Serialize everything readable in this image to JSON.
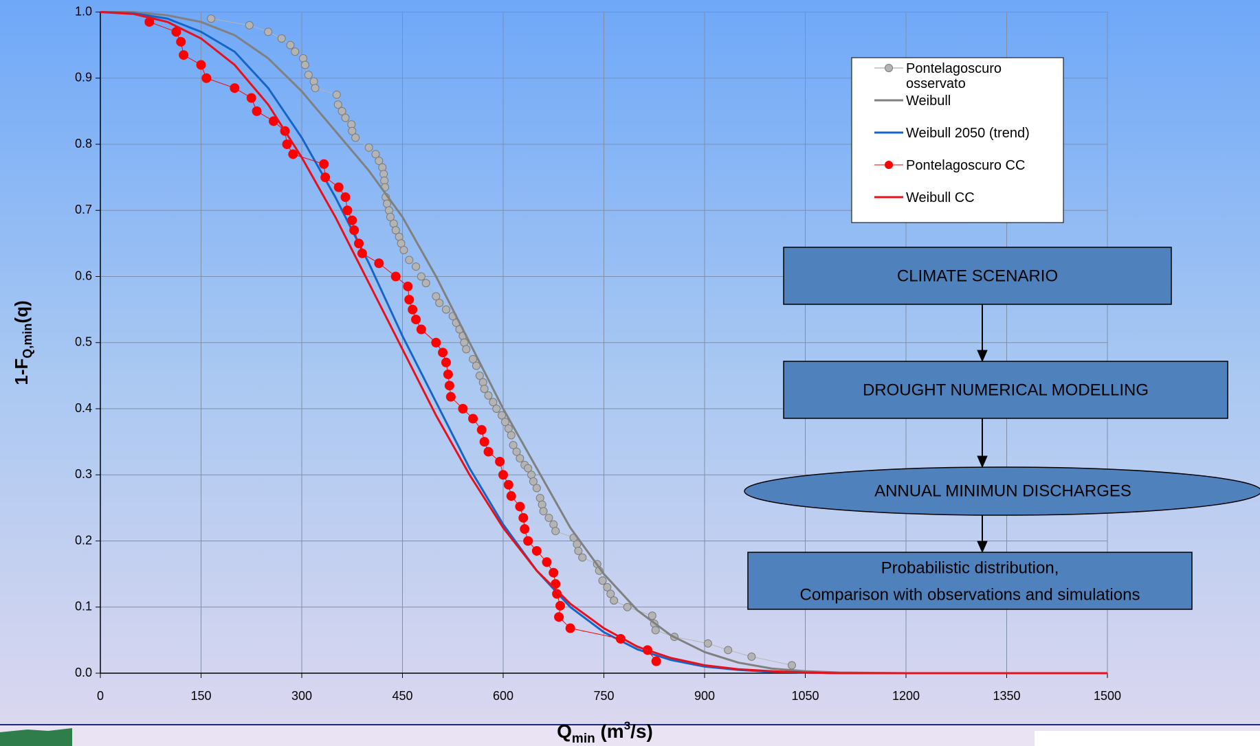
{
  "chart_data": {
    "type": "line",
    "x_label": [
      "Q",
      "min",
      " (m",
      "3",
      "/s)"
    ],
    "y_label": [
      "1-F",
      "Q,min",
      "(q)"
    ],
    "xlim": [
      0,
      1500
    ],
    "xticks": [
      0,
      150,
      300,
      450,
      600,
      750,
      900,
      1050,
      1200,
      1350,
      1500
    ],
    "ylim": [
      0,
      1
    ],
    "yticks": [
      {
        "value": 0,
        "label": "0.0"
      },
      0.1,
      0.2,
      0.3,
      0.4,
      0.5,
      0.6,
      0.7,
      0.8,
      0.9,
      {
        "value": 1,
        "label": "1.0"
      }
    ],
    "grid": true,
    "series": [
      {
        "name": "Pontelagoscuro osservato",
        "color": "#b4b4b4",
        "marker": true,
        "line_width": 1,
        "x": [
          165,
          222,
          250,
          270,
          283,
          290,
          302,
          305,
          310,
          318,
          320,
          352,
          354,
          360,
          365,
          374,
          375,
          380,
          400,
          410,
          415,
          420,
          422,
          423,
          424,
          425,
          427,
          430,
          432,
          437,
          440,
          445,
          448,
          452,
          460,
          470,
          478,
          485,
          500,
          505,
          515,
          525,
          530,
          535,
          540,
          542,
          545,
          555,
          560,
          565,
          570,
          572,
          578,
          585,
          590,
          598,
          603,
          608,
          612,
          615,
          620,
          625,
          632,
          637,
          642,
          645,
          650,
          655,
          658,
          660,
          668,
          675,
          678,
          705,
          710,
          712,
          718,
          740,
          743,
          748,
          755,
          760,
          765,
          785,
          822,
          825,
          827,
          855,
          905,
          935,
          970,
          1030
        ],
        "values": [
          0.99,
          0.98,
          0.97,
          0.96,
          0.95,
          0.94,
          0.93,
          0.92,
          0.905,
          0.895,
          0.885,
          0.875,
          0.86,
          0.85,
          0.84,
          0.83,
          0.82,
          0.81,
          0.795,
          0.785,
          0.775,
          0.765,
          0.755,
          0.745,
          0.735,
          0.72,
          0.71,
          0.7,
          0.69,
          0.68,
          0.67,
          0.66,
          0.65,
          0.64,
          0.625,
          0.615,
          0.6,
          0.59,
          0.57,
          0.56,
          0.55,
          0.54,
          0.53,
          0.52,
          0.51,
          0.5,
          0.49,
          0.475,
          0.465,
          0.45,
          0.44,
          0.43,
          0.42,
          0.41,
          0.4,
          0.39,
          0.38,
          0.37,
          0.36,
          0.345,
          0.335,
          0.325,
          0.315,
          0.31,
          0.3,
          0.29,
          0.28,
          0.265,
          0.255,
          0.245,
          0.235,
          0.225,
          0.215,
          0.205,
          0.195,
          0.185,
          0.175,
          0.165,
          0.155,
          0.14,
          0.13,
          0.12,
          0.11,
          0.1,
          0.087,
          0.075,
          0.065,
          0.055,
          0.045,
          0.035,
          0.025,
          0.012
        ]
      },
      {
        "name": "Weibull",
        "color": "#808080",
        "marker": false,
        "line_width": 3,
        "x": [
          0,
          50,
          100,
          150,
          200,
          250,
          300,
          350,
          400,
          450,
          500,
          550,
          600,
          650,
          700,
          750,
          800,
          850,
          900,
          950,
          1000,
          1050,
          1100,
          1200,
          1500
        ],
        "values": [
          1,
          1,
          0.995,
          0.985,
          0.965,
          0.93,
          0.88,
          0.82,
          0.76,
          0.69,
          0.6,
          0.5,
          0.4,
          0.31,
          0.22,
          0.15,
          0.095,
          0.057,
          0.032,
          0.016,
          0.007,
          0.003,
          0.001,
          0,
          0
        ]
      },
      {
        "name": "Weibull 2050 (trend)",
        "color": "#1565c8",
        "marker": false,
        "line_width": 3,
        "x": [
          0,
          50,
          100,
          150,
          200,
          250,
          300,
          350,
          400,
          450,
          500,
          550,
          600,
          650,
          700,
          750,
          800,
          850,
          900,
          950,
          1000,
          1050,
          1100,
          1500
        ],
        "values": [
          1,
          0.998,
          0.99,
          0.97,
          0.94,
          0.885,
          0.81,
          0.72,
          0.62,
          0.51,
          0.41,
          0.31,
          0.225,
          0.155,
          0.1,
          0.062,
          0.036,
          0.02,
          0.01,
          0.005,
          0.002,
          0.001,
          0,
          0
        ]
      },
      {
        "name": "Pontelagoscuro CC",
        "color": "#ff0000",
        "marker": true,
        "line_width": 1,
        "x": [
          73,
          113,
          120,
          124,
          150,
          158,
          200,
          225,
          233,
          258,
          275,
          278,
          287,
          333,
          335,
          355,
          365,
          368,
          375,
          378,
          385,
          390,
          415,
          440,
          458,
          460,
          465,
          470,
          478,
          500,
          510,
          515,
          518,
          520,
          522,
          540,
          555,
          568,
          572,
          578,
          595,
          600,
          608,
          612,
          625,
          630,
          632,
          637,
          650,
          665,
          675,
          678,
          680,
          685,
          683,
          700,
          775,
          815,
          828
        ],
        "values": [
          0.985,
          0.97,
          0.955,
          0.935,
          0.92,
          0.9,
          0.885,
          0.87,
          0.85,
          0.835,
          0.82,
          0.8,
          0.785,
          0.77,
          0.75,
          0.735,
          0.72,
          0.7,
          0.685,
          0.67,
          0.65,
          0.635,
          0.62,
          0.6,
          0.585,
          0.565,
          0.55,
          0.535,
          0.52,
          0.5,
          0.485,
          0.47,
          0.452,
          0.435,
          0.418,
          0.4,
          0.385,
          0.368,
          0.35,
          0.335,
          0.32,
          0.3,
          0.285,
          0.268,
          0.252,
          0.235,
          0.218,
          0.2,
          0.185,
          0.168,
          0.152,
          0.135,
          0.12,
          0.102,
          0.085,
          0.068,
          0.052,
          0.035,
          0.018
        ]
      },
      {
        "name": "Weibull CC",
        "color": "#e8101a",
        "marker": false,
        "line_width": 3,
        "x": [
          0,
          50,
          100,
          150,
          200,
          250,
          300,
          350,
          400,
          450,
          500,
          550,
          600,
          650,
          700,
          750,
          800,
          850,
          900,
          950,
          1000,
          1050,
          1100,
          1500
        ],
        "values": [
          1,
          0.997,
          0.985,
          0.96,
          0.92,
          0.86,
          0.78,
          0.69,
          0.59,
          0.49,
          0.39,
          0.3,
          0.22,
          0.155,
          0.105,
          0.068,
          0.04,
          0.023,
          0.012,
          0.006,
          0.003,
          0.001,
          0,
          0
        ]
      }
    ]
  },
  "flowchart": {
    "nodes": [
      {
        "label": "CLIMATE SCENARIO"
      },
      {
        "label": "DROUGHT NUMERICAL MODELLING"
      },
      {
        "label": "ANNUAL MINIMUN DISCHARGES"
      },
      {
        "label": "Probabilistic distribution,"
      },
      {
        "label": "Comparison with observations and simulations"
      }
    ]
  }
}
